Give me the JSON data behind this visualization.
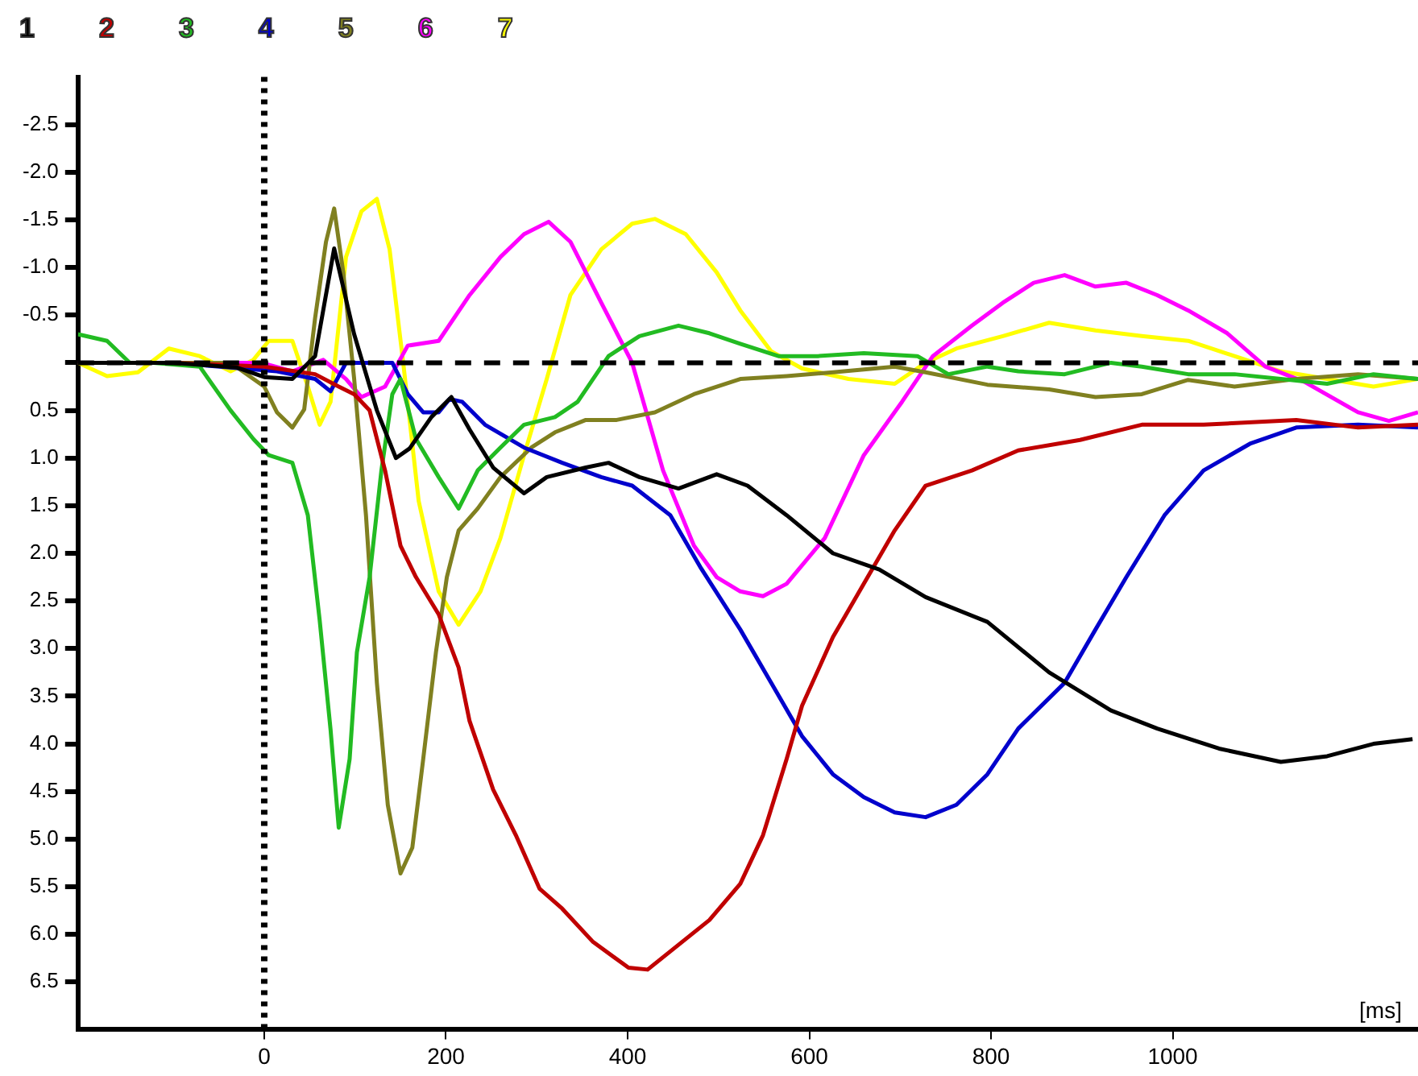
{
  "chart_data": {
    "type": "line",
    "xlabel": "[ms]",
    "xlim": [
      -205,
      1270
    ],
    "ylim": [
      7,
      -3
    ],
    "xticks": [
      0,
      200,
      400,
      600,
      800,
      1000
    ],
    "yticks": [
      -2.5,
      {
        "value": -2,
        "label": "-2.0"
      },
      -1.5,
      {
        "value": -1,
        "label": "-1.0"
      },
      -0.5,
      {
        "value": 0,
        "label": null
      },
      0.5,
      {
        "value": 1,
        "label": "1.0"
      },
      1.5,
      {
        "value": 2,
        "label": "2.0"
      },
      2.5,
      {
        "value": 3,
        "label": "3.0"
      },
      3.5,
      {
        "value": 4,
        "label": "4.0"
      },
      4.5,
      {
        "value": 5,
        "label": "5.0"
      },
      5.5,
      {
        "value": 6,
        "label": "6.0"
      },
      6.5
    ],
    "grid": false,
    "legend": "top left",
    "marker": "none",
    "ref_lines": [
      {
        "axis": "x",
        "value": 0,
        "color": "#000000",
        "line_style": "dotted"
      },
      {
        "axis": "y",
        "value": 0,
        "color": "#000000",
        "line_style": "dashed"
      }
    ],
    "series": [
      {
        "name": "1",
        "color": "#000000",
        "x": [
          -205,
          -100,
          -30,
          0,
          31,
          56,
          77,
          99,
          124,
          145,
          160,
          184,
          206,
          226,
          252,
          286,
          311,
          354,
          379,
          413,
          456,
          498,
          532,
          575,
          626,
          677,
          728,
          796,
          864,
          932,
          983,
          1051,
          1119,
          1170,
          1221,
          1264
        ],
        "values": [
          0,
          0,
          0.05,
          0.15,
          0.17,
          -0.07,
          -1.2,
          -0.3,
          0.5,
          1.0,
          0.9,
          0.57,
          0.36,
          0.7,
          1.1,
          1.37,
          1.2,
          1.1,
          1.05,
          1.2,
          1.32,
          1.17,
          1.29,
          1.6,
          2.0,
          2.17,
          2.46,
          2.72,
          3.25,
          3.65,
          3.84,
          4.05,
          4.19,
          4.13,
          4.0,
          3.95
        ]
      },
      {
        "name": "2",
        "color": "#c00000",
        "x": [
          -205,
          -100,
          0,
          56,
          82,
          99,
          116,
          133,
          150,
          167,
          192,
          214,
          226,
          252,
          277,
          303,
          328,
          362,
          401,
          422,
          456,
          490,
          524,
          549,
          575,
          592,
          626,
          660,
          694,
          728,
          779,
          830,
          898,
          966,
          1034,
          1136,
          1204,
          1270
        ],
        "values": [
          0,
          0,
          0.04,
          0.12,
          0.25,
          0.33,
          0.5,
          1.13,
          1.92,
          2.25,
          2.64,
          3.2,
          3.76,
          4.48,
          4.96,
          5.52,
          5.73,
          6.08,
          6.35,
          6.37,
          6.11,
          5.85,
          5.47,
          4.96,
          4.16,
          3.6,
          2.88,
          2.32,
          1.76,
          1.29,
          1.13,
          0.92,
          0.81,
          0.65,
          0.65,
          0.6,
          0.68,
          0.65
        ]
      },
      {
        "name": "3",
        "color": "#22bb22",
        "x": [
          -205,
          -173,
          -148,
          -122,
          -71,
          -37,
          -12,
          5,
          31,
          48,
          61,
          73,
          82,
          94,
          102,
          116,
          129,
          141,
          150,
          167,
          192,
          214,
          235,
          260,
          286,
          320,
          345,
          379,
          413,
          456,
          490,
          524,
          566,
          609,
          660,
          719,
          753,
          796,
          830,
          881,
          932,
          966,
          1017,
          1068,
          1119,
          1170,
          1221,
          1270
        ],
        "values": [
          -0.3,
          -0.23,
          0,
          0,
          0.04,
          0.5,
          0.8,
          0.97,
          1.05,
          1.6,
          2.7,
          3.85,
          4.88,
          4.16,
          3.04,
          2.25,
          1.13,
          0.33,
          0.17,
          0.8,
          1.2,
          1.53,
          1.13,
          0.89,
          0.65,
          0.57,
          0.41,
          -0.07,
          -0.28,
          -0.39,
          -0.31,
          -0.2,
          -0.07,
          -0.07,
          -0.1,
          -0.07,
          0.12,
          0.04,
          0.09,
          0.12,
          0,
          0.04,
          0.12,
          0.12,
          0.17,
          0.22,
          0.12,
          0.17
        ]
      },
      {
        "name": "4",
        "color": "#0000cc",
        "x": [
          -205,
          -100,
          14,
          56,
          73,
          90,
          141,
          158,
          175,
          192,
          204,
          218,
          243,
          286,
          328,
          371,
          405,
          447,
          481,
          524,
          558,
          592,
          626,
          660,
          694,
          728,
          762,
          796,
          830,
          881,
          915,
          949,
          991,
          1034,
          1085,
          1136,
          1204,
          1270
        ],
        "values": [
          0,
          0,
          0.09,
          0.17,
          0.3,
          0,
          0,
          0.33,
          0.52,
          0.52,
          0.38,
          0.41,
          0.65,
          0.89,
          1.05,
          1.2,
          1.29,
          1.6,
          2.16,
          2.8,
          3.36,
          3.92,
          4.32,
          4.56,
          4.72,
          4.77,
          4.64,
          4.32,
          3.84,
          3.36,
          2.8,
          2.25,
          1.6,
          1.13,
          0.85,
          0.68,
          0.65,
          0.68
        ]
      },
      {
        "name": "5",
        "color": "#808020",
        "x": [
          -205,
          -100,
          -37,
          0,
          14,
          31,
          44,
          56,
          68,
          77,
          87,
          99,
          112,
          124,
          136,
          150,
          163,
          175,
          189,
          201,
          214,
          235,
          260,
          294,
          320,
          354,
          388,
          430,
          473,
          524,
          575,
          626,
          694,
          728,
          796,
          864,
          915,
          966,
          1017,
          1068,
          1136,
          1204,
          1270
        ],
        "values": [
          0,
          0,
          0,
          0.25,
          0.52,
          0.68,
          0.49,
          -0.47,
          -1.27,
          -1.62,
          -0.95,
          0.17,
          1.6,
          3.36,
          4.64,
          5.36,
          5.09,
          4.16,
          3.04,
          2.25,
          1.76,
          1.53,
          1.2,
          0.89,
          0.73,
          0.6,
          0.6,
          0.52,
          0.33,
          0.17,
          0.14,
          0.1,
          0.04,
          0.1,
          0.23,
          0.28,
          0.36,
          0.33,
          0.18,
          0.25,
          0.17,
          0.12,
          0.17
        ]
      },
      {
        "name": "6",
        "color": "#ff00ff",
        "x": [
          -205,
          -100,
          -3,
          31,
          65,
          90,
          107,
          133,
          158,
          192,
          226,
          260,
          286,
          313,
          337,
          371,
          405,
          439,
          473,
          498,
          524,
          549,
          575,
          617,
          660,
          702,
          736,
          779,
          813,
          847,
          881,
          915,
          949,
          983,
          1017,
          1060,
          1102,
          1145,
          1204,
          1238,
          1270
        ],
        "values": [
          0,
          0,
          0,
          0.09,
          -0.03,
          0.17,
          0.36,
          0.25,
          -0.18,
          -0.23,
          -0.71,
          -1.11,
          -1.35,
          -1.48,
          -1.27,
          -0.63,
          0,
          1.13,
          1.92,
          2.25,
          2.4,
          2.45,
          2.32,
          1.84,
          0.97,
          0.41,
          -0.07,
          -0.39,
          -0.63,
          -0.84,
          -0.92,
          -0.8,
          -0.84,
          -0.71,
          -0.55,
          -0.31,
          0.04,
          0.2,
          0.52,
          0.61,
          0.52
        ]
      },
      {
        "name": "7",
        "color": "#ffff00",
        "x": [
          -205,
          -173,
          -139,
          -105,
          -71,
          -37,
          -12,
          5,
          31,
          48,
          61,
          73,
          90,
          107,
          124,
          138,
          153,
          170,
          192,
          214,
          238,
          260,
          286,
          311,
          337,
          371,
          405,
          430,
          464,
          498,
          524,
          558,
          592,
          643,
          694,
          728,
          762,
          813,
          864,
          915,
          966,
          1017,
          1068,
          1119,
          1170,
          1221,
          1270
        ],
        "values": [
          0,
          0.14,
          0.1,
          -0.15,
          -0.07,
          0.09,
          -0.03,
          -0.23,
          -0.23,
          0.25,
          0.65,
          0.41,
          -1.11,
          -1.59,
          -1.72,
          -1.19,
          0,
          1.45,
          2.4,
          2.75,
          2.4,
          1.84,
          0.97,
          0.17,
          -0.71,
          -1.19,
          -1.46,
          -1.51,
          -1.35,
          -0.95,
          -0.55,
          -0.12,
          0.06,
          0.17,
          0.22,
          0,
          -0.15,
          -0.28,
          -0.42,
          -0.34,
          -0.28,
          -0.23,
          -0.07,
          0.09,
          0.17,
          0.25,
          0.17
        ]
      }
    ]
  }
}
